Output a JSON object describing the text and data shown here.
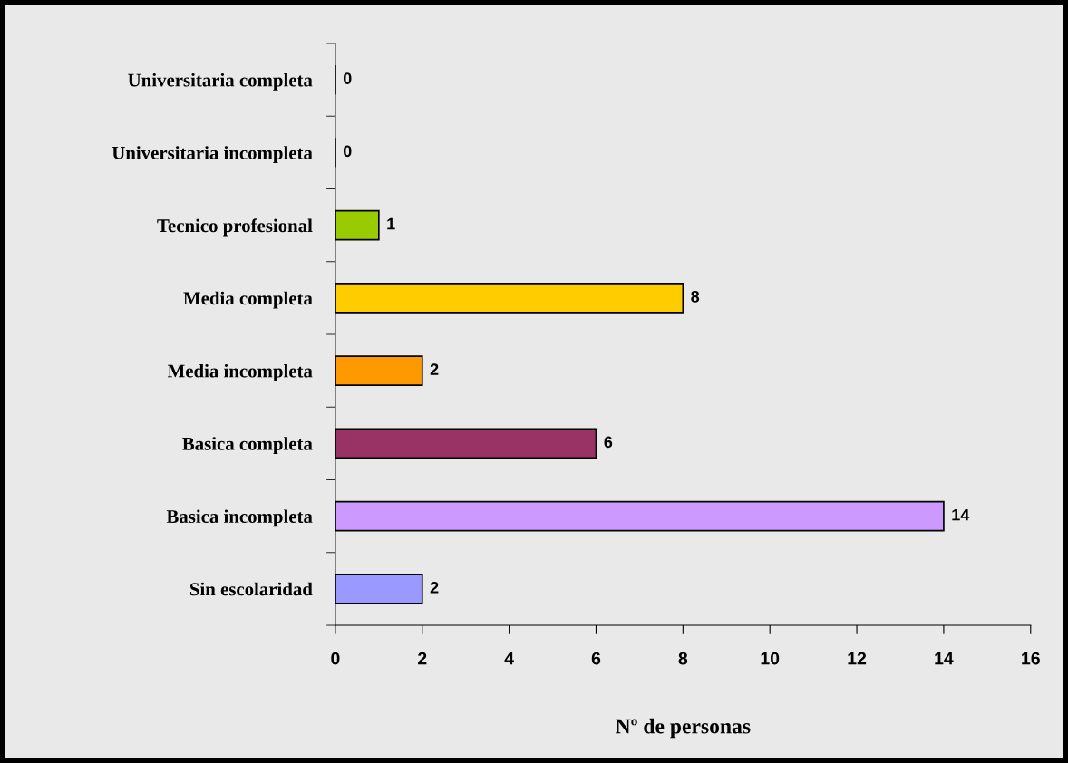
{
  "chart_data": {
    "type": "bar",
    "orientation": "horizontal",
    "xlabel": "Nº de personas",
    "categories": [
      "Universitaria completa",
      "Universitaria incompleta",
      "Tecnico profesional",
      "Media completa",
      "Media incompleta",
      "Basica completa",
      "Basica incompleta",
      "Sin escolaridad"
    ],
    "values": [
      0,
      0,
      1,
      8,
      2,
      6,
      14,
      2
    ],
    "colors": [
      null,
      null,
      "#99cc00",
      "#ffcc00",
      "#ff9900",
      "#993366",
      "#cc99ff",
      "#9999ff"
    ],
    "xlim": [
      0,
      16
    ],
    "xticks": [
      0,
      2,
      4,
      6,
      8,
      10,
      12,
      14,
      16
    ],
    "data_labels": true,
    "grid": false,
    "legend": false
  }
}
